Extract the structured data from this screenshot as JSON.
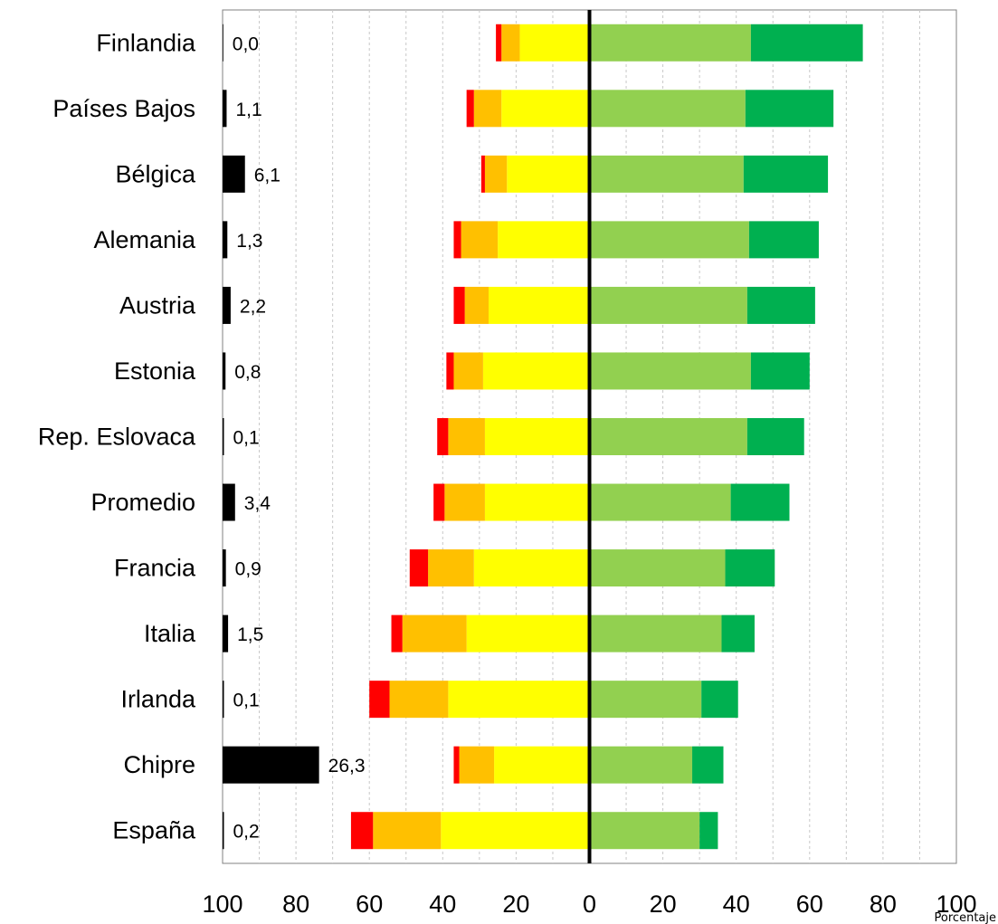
{
  "chart_data": {
    "type": "bar",
    "orientation": "horizontal",
    "stacking": "diverging",
    "categories": [
      "Finlandia",
      "Países Bajos",
      "Bélgica",
      "Alemania",
      "Austria",
      "Estonia",
      "Rep. Eslovaca",
      "Promedio",
      "Francia",
      "Italia",
      "Irlanda",
      "Chipre",
      "España"
    ],
    "side_values": [
      0.0,
      1.1,
      6.1,
      1.3,
      2.2,
      0.8,
      0.1,
      3.4,
      0.9,
      1.5,
      0.1,
      26.3,
      0.2
    ],
    "side_value_labels": [
      "0,0",
      "1,1",
      "6,1",
      "1,3",
      "2,2",
      "0,8",
      "0,1",
      "3,4",
      "0,9",
      "1,5",
      "0,1",
      "26,3",
      "0,2"
    ],
    "negative_series": [
      {
        "color": "#ffff00",
        "values": [
          19,
          24,
          22.5,
          25,
          27.5,
          29,
          28.5,
          28.5,
          31.5,
          33.5,
          38.5,
          26,
          40.5
        ]
      },
      {
        "color": "#ffc000",
        "values": [
          5,
          7.5,
          6,
          10,
          6.5,
          8,
          10,
          11,
          12.5,
          17.5,
          16,
          9.5,
          18.5
        ]
      },
      {
        "color": "#ff0000",
        "values": [
          1.5,
          2,
          1,
          2,
          3,
          2,
          3,
          3,
          5,
          3,
          5.5,
          1.5,
          6
        ]
      }
    ],
    "positive_series": [
      {
        "color": "#92d050",
        "values": [
          44,
          42.5,
          42,
          43.5,
          43,
          44,
          43,
          38.5,
          37,
          36,
          30.5,
          28,
          30
        ]
      },
      {
        "color": "#00b050",
        "values": [
          30.5,
          24,
          23,
          19,
          18.5,
          16,
          15.5,
          16,
          13.5,
          9,
          10,
          8.5,
          5
        ]
      }
    ],
    "side_color": "#000000",
    "xlim": [
      -100,
      100
    ],
    "x_ticks": [
      "100",
      "80",
      "60",
      "40",
      "20",
      "0",
      "20",
      "40",
      "60",
      "80",
      "100"
    ],
    "xlabel": "Porcentaje",
    "grid": "vertical-dashed"
  }
}
